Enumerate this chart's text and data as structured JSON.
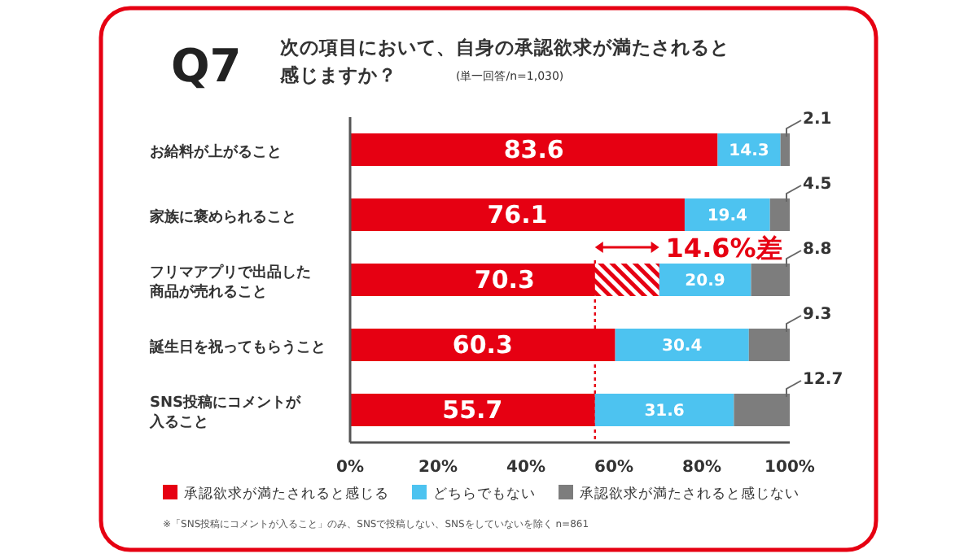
{
  "chart_data": {
    "type": "bar",
    "orientation": "horizontal",
    "stacked": true,
    "title": "Q7",
    "subtitle": "次の項目において、自身の承認欲求が満たされると感じますか？",
    "categories": [
      "お給料が上がること",
      "家族に褒められること",
      "フリマアプリで出品した商品が売れること",
      "誕生日を祝ってもらうこと",
      "SNS投稿にコメントが入ること"
    ],
    "series": [
      {
        "name": "承認欲求が満たされると感じる",
        "color": "#e60012",
        "values": [
          83.6,
          76.1,
          70.3,
          60.3,
          55.7
        ]
      },
      {
        "name": "どちらでもない",
        "color": "#4dc3f0",
        "values": [
          14.3,
          19.4,
          20.9,
          30.4,
          31.6
        ]
      },
      {
        "name": "承認欲求が満たされると感じない",
        "color": "#7d7d7d",
        "values": [
          2.1,
          4.5,
          8.8,
          9.3,
          12.7
        ]
      }
    ],
    "xlim": [
      0,
      100
    ],
    "xticks": [
      {
        "value": 0,
        "label": "0%"
      },
      {
        "value": 20,
        "label": "20%"
      },
      {
        "value": 40,
        "label": "40%"
      },
      {
        "value": 60,
        "label": "60%"
      },
      {
        "value": 80,
        "label": "80%"
      },
      {
        "value": 100,
        "label": "100%"
      }
    ],
    "data_labels": true,
    "legend": "bottom",
    "ref_lines": [
      {
        "axis": "x",
        "value": 55.7,
        "color": "#e60012",
        "line_style": "dotted"
      }
    ],
    "annotations": [
      "(単一回答/n=1,030)",
      {
        "text": "14.6%差",
        "x": 70.3,
        "y": "フリマアプリで出品した商品が売れること"
      },
      "※「SNS投稿にコメントが入ること」のみ、SNSで投稿しない、SNSをしていないを除く n=861"
    ]
  }
}
